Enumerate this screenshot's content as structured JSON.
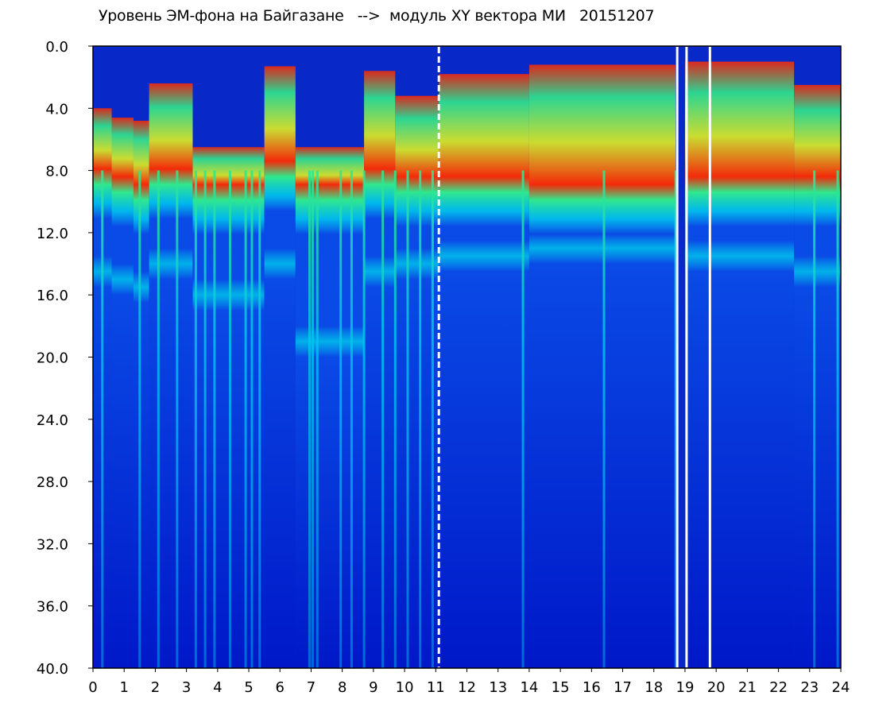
{
  "chart_data": {
    "type": "heatmap",
    "title": "Уровень ЭМ-фона на Байгазане   -->  модуль XY вектора МИ   20151207",
    "xlabel": "",
    "ylabel": "",
    "xlim": [
      0,
      24
    ],
    "ylim": [
      0.0,
      40.0
    ],
    "y_inverted": true,
    "x_ticks": [
      "0",
      "1",
      "2",
      "3",
      "4",
      "5",
      "6",
      "7",
      "8",
      "9",
      "10",
      "11",
      "12",
      "13",
      "14",
      "15",
      "16",
      "17",
      "18",
      "19",
      "20",
      "21",
      "22",
      "23",
      "24"
    ],
    "y_ticks": [
      "0.0",
      "4.0",
      "8.0",
      "12.0",
      "16.0",
      "20.0",
      "24.0",
      "28.0",
      "32.0",
      "36.0",
      "40.0"
    ],
    "colorscale": [
      "#0018c8",
      "#0a4ae6",
      "#00c8f0",
      "#30e88c",
      "#e0f020",
      "#ff2a00"
    ],
    "background_color": "#0828c8",
    "gaps_at_hours": [
      11.1,
      18.75,
      19.05,
      19.8
    ],
    "activity_intervals": [
      {
        "x": [
          0.0,
          0.6
        ],
        "top": 4.0,
        "band_bottom": 8.5,
        "deep": 15.5
      },
      {
        "x": [
          0.6,
          1.3
        ],
        "top": 4.6,
        "band_bottom": 9.0,
        "deep": 16.0
      },
      {
        "x": [
          1.3,
          1.8
        ],
        "top": 4.8,
        "band_bottom": 9.5,
        "deep": 16.5
      },
      {
        "x": [
          1.8,
          3.2
        ],
        "top": 2.4,
        "band_bottom": 8.5,
        "deep": 15.0
      },
      {
        "x": [
          3.2,
          5.5
        ],
        "top": 6.5,
        "band_bottom": 9.5,
        "deep": 17.0
      },
      {
        "x": [
          5.5,
          6.5
        ],
        "top": 1.3,
        "band_bottom": 8.0,
        "deep": 15.0
      },
      {
        "x": [
          6.5,
          8.7
        ],
        "top": 6.5,
        "band_bottom": 9.5,
        "deep": 20.0
      },
      {
        "x": [
          8.7,
          9.7
        ],
        "top": 1.6,
        "band_bottom": 8.5,
        "deep": 15.5
      },
      {
        "x": [
          9.7,
          11.1
        ],
        "top": 3.2,
        "band_bottom": 9.0,
        "deep": 15.0
      },
      {
        "x": [
          11.1,
          14.0
        ],
        "top": 1.8,
        "band_bottom": 9.0,
        "deep": 14.5
      },
      {
        "x": [
          14.0,
          18.7
        ],
        "top": 1.2,
        "band_bottom": 9.5,
        "deep": 14.0
      },
      {
        "x": [
          19.0,
          22.5
        ],
        "top": 1.0,
        "band_bottom": 9.0,
        "deep": 14.5
      },
      {
        "x": [
          22.5,
          24.0
        ],
        "top": 2.5,
        "band_bottom": 9.0,
        "deep": 15.5
      }
    ],
    "bright_streaks_at_hours": [
      0.3,
      1.5,
      2.1,
      2.7,
      3.3,
      3.6,
      3.9,
      4.4,
      4.9,
      5.1,
      5.35,
      6.95,
      7.05,
      7.2,
      7.95,
      8.3,
      8.7,
      9.3,
      9.7,
      10.1,
      10.5,
      10.9,
      13.8,
      16.4,
      18.7,
      23.15,
      23.9
    ],
    "grid": false,
    "legend": "none"
  }
}
